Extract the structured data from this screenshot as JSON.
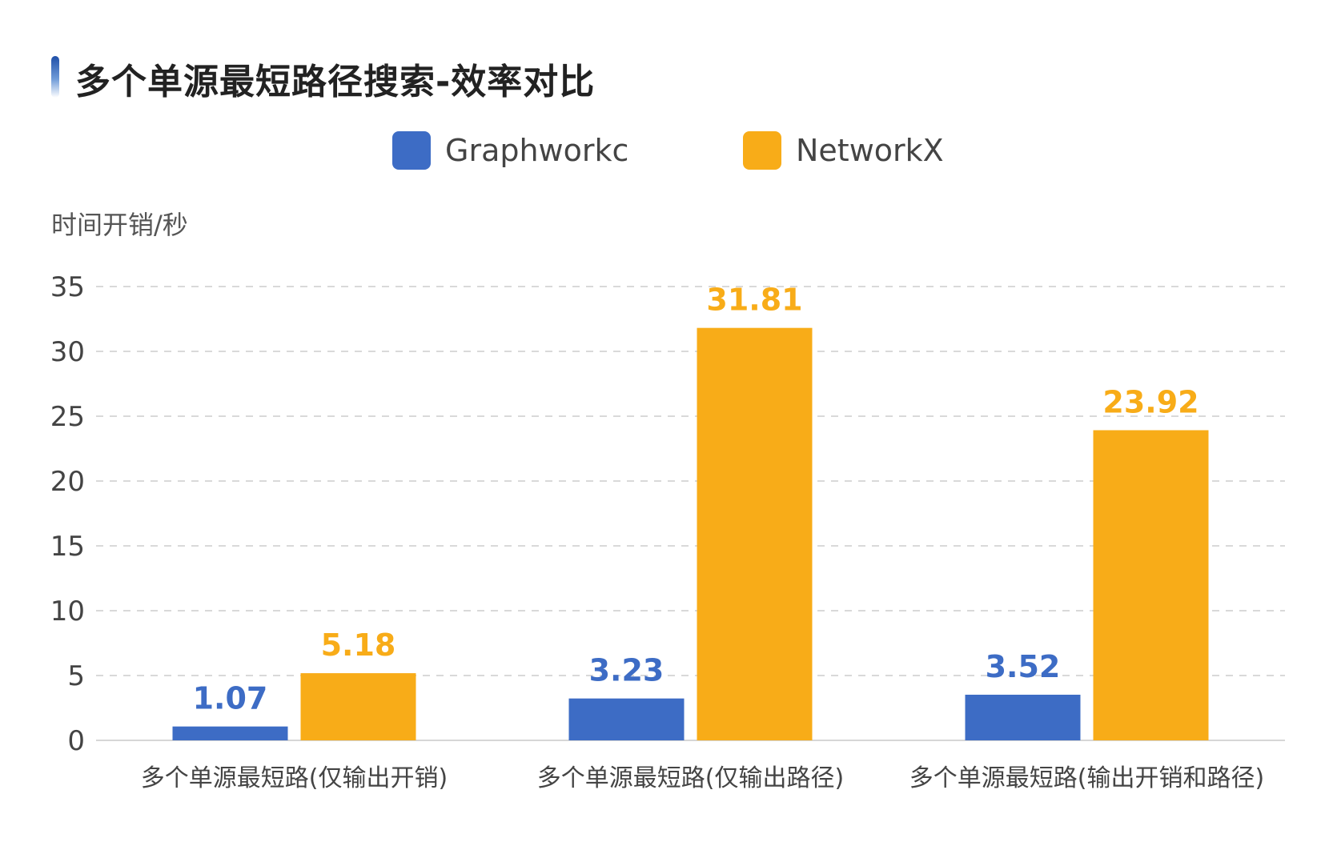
{
  "chart_data": {
    "type": "bar",
    "title": "多个单源最短路径搜索-效率对比",
    "ylabel": "时间开销/秒",
    "ylim": [
      0,
      35
    ],
    "yticks": [
      "0",
      "5",
      "10",
      "15",
      "20",
      "25",
      "30",
      "35"
    ],
    "categories": [
      "多个单源最短路(仅输出开销)",
      "多个单源最短路(仅输出路径)",
      "多个单源最短路(输出开销和路径)"
    ],
    "series": [
      {
        "name": "Graphworkc",
        "color": "#3d6cc5",
        "values": [
          1.07,
          3.23,
          3.52
        ],
        "labels": [
          "1.07",
          "3.23",
          "3.52"
        ]
      },
      {
        "name": "NetworkX",
        "color": "#f8ac18",
        "values": [
          5.18,
          31.81,
          23.92
        ],
        "labels": [
          "5.18",
          "31.81",
          "23.92"
        ]
      }
    ],
    "grid": true,
    "legend_position": "top"
  }
}
